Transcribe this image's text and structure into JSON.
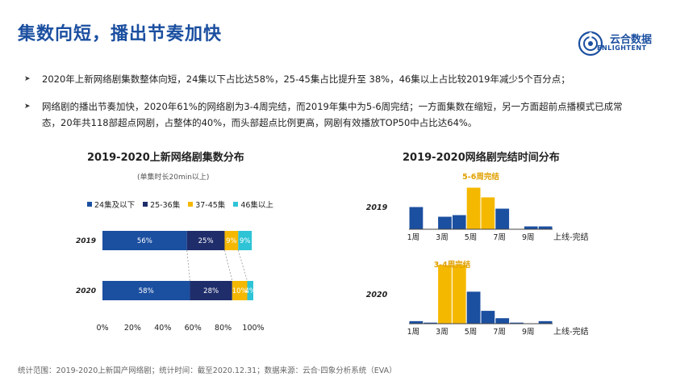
{
  "page": {
    "title": "集数向短，播出节奏加快",
    "logo": {
      "name": "云合数据",
      "sub": "ENLIGHTENT"
    },
    "bullets": [
      "2020年上新网络剧集数整体向短，24集以下占比达58%，25-45集占比提升至 38%，46集以上占比较2019年减少5个百分点；",
      "网络剧的播出节奏加快，2020年61%的网络剧为3-4周完结，而2019年集中为5-6周完结；一方面集数在缩短，另一方面超前点播模式已成常态，20年共118部超点网剧，占整体的40%，而头部超点比例更高，网剧有效播放TOP50中占比达64%。"
    ],
    "footer": "统计范围：2019-2020上新国产网络剧；统计时间：截至2020.12.31；数据来源：云合·四象分析系统（EVA）"
  },
  "chart_data": [
    {
      "type": "bar",
      "orientation": "horizontal-stacked-percent",
      "title": "2019-2020上新网络剧集数分布",
      "subtitle": "(单集时长20min以上)",
      "categories": [
        "2019",
        "2020"
      ],
      "series": [
        {
          "name": "24集及以下",
          "color": "#1b4fa0",
          "values": [
            56,
            58
          ],
          "labels": [
            "56%",
            "58%"
          ]
        },
        {
          "name": "25-36集",
          "color": "#1f2d6b",
          "values": [
            25,
            28
          ],
          "labels": [
            "25%",
            "28%"
          ]
        },
        {
          "name": "37-45集",
          "color": "#f5b800",
          "values": [
            9,
            10
          ],
          "labels": [
            "9%",
            "10%"
          ]
        },
        {
          "name": "46集以上",
          "color": "#2ec4d6",
          "values": [
            9,
            4
          ],
          "labels": [
            "9%",
            "4%"
          ]
        }
      ],
      "xticks": [
        "0%",
        "20%",
        "40%",
        "60%",
        "80%",
        "100%"
      ],
      "xlim": [
        0,
        100
      ]
    },
    {
      "type": "bar",
      "orientation": "histogram",
      "title": "2019-2020网络剧完结时间分布",
      "xlabel": "上线-完结",
      "xticks": [
        "1周",
        "3周",
        "5周",
        "7周",
        "9周"
      ],
      "panels": [
        {
          "year": "2019",
          "annotation": "5-6周完结",
          "values": [
            7,
            0,
            4,
            4.5,
            13,
            10,
            6.5,
            0,
            1,
            1
          ],
          "highlight": [
            4,
            5
          ],
          "ymax": 13
        },
        {
          "year": "2020",
          "annotation": "3-4周完结",
          "values": [
            1,
            0.5,
            20,
            20,
            11,
            4.5,
            2,
            0.5,
            0,
            1
          ],
          "highlight": [
            2,
            3
          ],
          "ymax": 20
        }
      ],
      "colors": {
        "normal": "#1b4fa0",
        "highlight": "#f5b800"
      }
    }
  ]
}
